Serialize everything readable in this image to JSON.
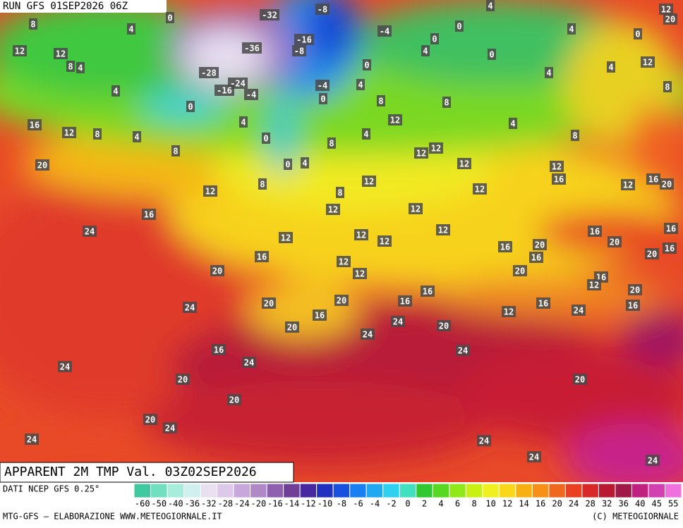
{
  "header": {
    "run": "RUN GFS 01SEP2026 06Z"
  },
  "map": {
    "labels": [
      8,
      4,
      0,
      12,
      12,
      8,
      4,
      4,
      16,
      12,
      8,
      4,
      20,
      8,
      12,
      16,
      24,
      20,
      24,
      24,
      20,
      24,
      20,
      24,
      20,
      24,
      16,
      20,
      20,
      16,
      20,
      24,
      24,
      16,
      16,
      20,
      24,
      12,
      16,
      24,
      20,
      16,
      16,
      12,
      20,
      20,
      16,
      16,
      16,
      20,
      20,
      16,
      16,
      12,
      12,
      12,
      12,
      12,
      12,
      16,
      12,
      8,
      12,
      12,
      12,
      12,
      12,
      12,
      12,
      8,
      4,
      8,
      4,
      0,
      8,
      0,
      4,
      0,
      -4,
      4,
      0,
      -4,
      4,
      0,
      0,
      0,
      8,
      4,
      8,
      12,
      16,
      12,
      16,
      20,
      4,
      4,
      4,
      12,
      8,
      0,
      12,
      20,
      4,
      -8,
      -32,
      -36,
      -16,
      -8,
      -28,
      -24,
      -16,
      -4,
      0,
      24,
      24,
      24,
      20
    ]
  },
  "footer": {
    "title": "APPARENT 2M TMP Val. 03Z02SEP2026",
    "source": "DATI NCEP GFS 0.25°",
    "credit": "MTG-GFS — ELABORAZIONE WWW.METEOGIORNALE.IT",
    "copyright": "(C) METEOGIORNALE"
  },
  "legend": {
    "ticks": [
      -60,
      -50,
      -40,
      -36,
      -32,
      -28,
      -24,
      -20,
      -16,
      -14,
      -12,
      -10,
      -8,
      -6,
      -4,
      -2,
      0,
      2,
      4,
      6,
      8,
      10,
      12,
      14,
      16,
      20,
      24,
      28,
      32,
      36,
      40,
      45,
      55
    ],
    "colors": [
      "#40c8a0",
      "#70e0c0",
      "#a8ecdc",
      "#d0f0f0",
      "#e8e0f0",
      "#dcc8e8",
      "#c8a8dc",
      "#b088c8",
      "#9060b0",
      "#704098",
      "#4828a0",
      "#2030c0",
      "#1850e0",
      "#1880f0",
      "#20a8f0",
      "#30d0f0",
      "#40e0c0",
      "#30c830",
      "#58d820",
      "#90e818",
      "#c8f010",
      "#f0f020",
      "#f8d818",
      "#f8b010",
      "#f89018",
      "#f06820",
      "#e84020",
      "#d82828",
      "#b81830",
      "#a01848",
      "#c02080",
      "#d040b0",
      "#f070e0"
    ]
  }
}
